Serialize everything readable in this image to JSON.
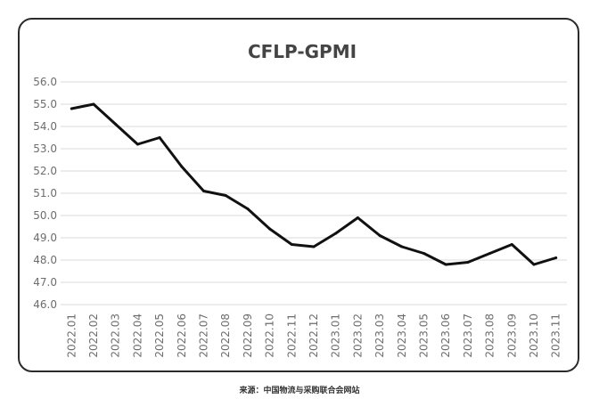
{
  "chart_data": {
    "type": "line",
    "title": "CFLP-GPMI",
    "xlabel": "",
    "ylabel": "",
    "ylim": [
      46.0,
      56.0
    ],
    "y_ticks": [
      "46.0",
      "47.0",
      "48.0",
      "49.0",
      "50.0",
      "51.0",
      "52.0",
      "53.0",
      "54.0",
      "55.0",
      "56.0"
    ],
    "grid": true,
    "legend": "none",
    "categories": [
      "2022.01",
      "2022.02",
      "2022.03",
      "2022.04",
      "2022.05",
      "2022.06",
      "2022.07",
      "2022.08",
      "2022.09",
      "2022.10",
      "2022.11",
      "2022.12",
      "2023.01",
      "2023.02",
      "2023.03",
      "2023.04",
      "2023.05",
      "2023.06",
      "2023.07",
      "2023.08",
      "2023.09",
      "2023.10",
      "2023.11"
    ],
    "series": [
      {
        "values": [
          54.8,
          55.0,
          54.1,
          53.2,
          53.5,
          52.2,
          51.1,
          50.9,
          50.3,
          49.4,
          48.7,
          48.6,
          49.2,
          49.9,
          49.1,
          48.6,
          48.3,
          47.8,
          47.9,
          48.3,
          48.7,
          47.8,
          48.1
        ]
      }
    ],
    "line_color": "#111111",
    "grid_color": "#d9d9d9"
  },
  "source_caption": "来源：中国物流与采购联合会网站"
}
